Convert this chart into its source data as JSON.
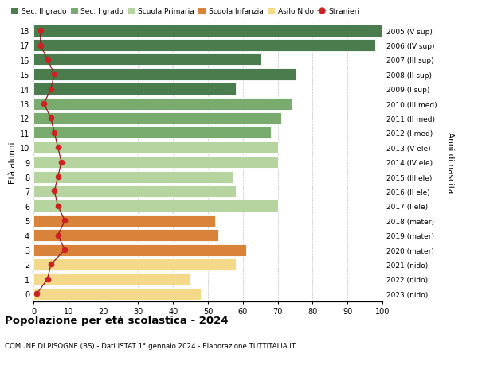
{
  "ages": [
    18,
    17,
    16,
    15,
    14,
    13,
    12,
    11,
    10,
    9,
    8,
    7,
    6,
    5,
    4,
    3,
    2,
    1,
    0
  ],
  "bar_values": [
    100,
    98,
    65,
    75,
    58,
    74,
    71,
    68,
    70,
    70,
    57,
    58,
    70,
    52,
    53,
    61,
    58,
    45,
    48
  ],
  "bar_colors": [
    "#4a7c4e",
    "#4a7c4e",
    "#4a7c4e",
    "#4a7c4e",
    "#4a7c4e",
    "#7aab6e",
    "#7aab6e",
    "#7aab6e",
    "#b5d4a0",
    "#b5d4a0",
    "#b5d4a0",
    "#b5d4a0",
    "#b5d4a0",
    "#d9823a",
    "#d9823a",
    "#d9823a",
    "#f5d98b",
    "#f5d98b",
    "#f5d98b"
  ],
  "right_labels": [
    "2005 (V sup)",
    "2006 (IV sup)",
    "2007 (III sup)",
    "2008 (II sup)",
    "2009 (I sup)",
    "2010 (III med)",
    "2011 (II med)",
    "2012 (I med)",
    "2013 (V ele)",
    "2014 (IV ele)",
    "2015 (III ele)",
    "2016 (II ele)",
    "2017 (I ele)",
    "2018 (mater)",
    "2019 (mater)",
    "2020 (mater)",
    "2021 (nido)",
    "2022 (nido)",
    "2023 (nido)"
  ],
  "stranieri_values": [
    2,
    2,
    4,
    6,
    5,
    3,
    5,
    6,
    7,
    8,
    7,
    6,
    7,
    9,
    7,
    9,
    5,
    4,
    1
  ],
  "legend_labels": [
    "Sec. II grado",
    "Sec. I grado",
    "Scuola Primaria",
    "Scuola Infanzia",
    "Asilo Nido",
    "Stranieri"
  ],
  "legend_colors": [
    "#4a7c4e",
    "#7aab6e",
    "#b5d4a0",
    "#d9823a",
    "#f5d98b",
    "#cc2222"
  ],
  "ylabel_left": "Età alunni",
  "ylabel_right": "Anni di nascita",
  "title": "Popolazione per età scolastica - 2024",
  "subtitle": "COMUNE DI PISOGNE (BS) - Dati ISTAT 1° gennaio 2024 - Elaborazione TUTTITALIA.IT",
  "xlim": [
    0,
    100
  ],
  "background_color": "#ffffff",
  "grid_color": "#bbbbbb"
}
